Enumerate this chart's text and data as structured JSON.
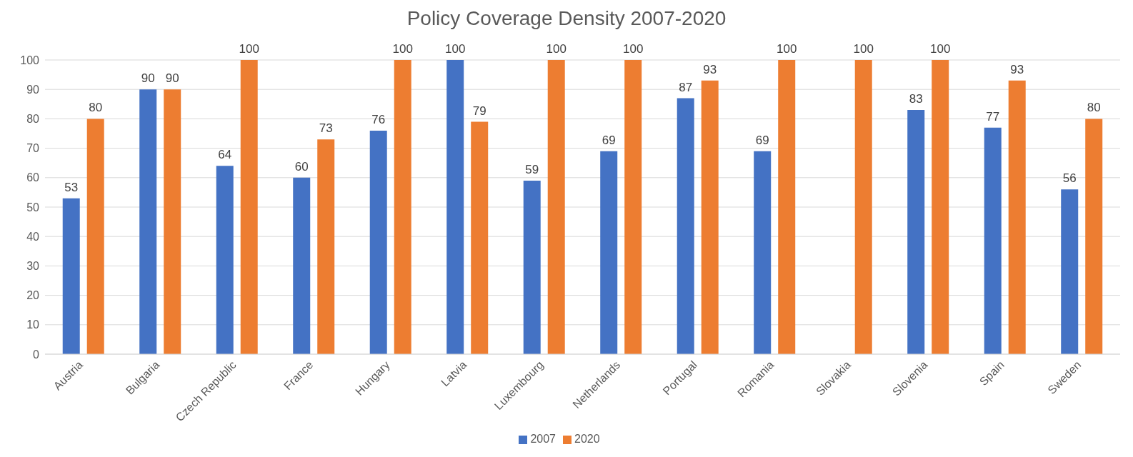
{
  "chart_data": {
    "type": "bar",
    "title": "Policy Coverage Density 2007-2020",
    "categories": [
      "Austria",
      "Bulgaria",
      "Czech Republic",
      "France",
      "Hungary",
      "Latvia",
      "Luxembourg",
      "Netherlands",
      "Portugal",
      "Romania",
      "Slovakia",
      "Slovenia",
      "Spain",
      "Sweden"
    ],
    "series": [
      {
        "name": "2007",
        "color": "#4472c4",
        "values": [
          53,
          90,
          64,
          60,
          76,
          100,
          59,
          69,
          87,
          69,
          null,
          83,
          77,
          56
        ]
      },
      {
        "name": "2020",
        "color": "#ed7d31",
        "values": [
          80,
          90,
          100,
          73,
          100,
          79,
          100,
          100,
          93,
          100,
          100,
          100,
          93,
          80
        ]
      }
    ],
    "ylim": [
      0,
      100
    ],
    "yticks": [
      0,
      10,
      20,
      30,
      40,
      50,
      60,
      70,
      80,
      90,
      100
    ],
    "grid": "y",
    "legend": "bottom",
    "data_labels": true
  }
}
